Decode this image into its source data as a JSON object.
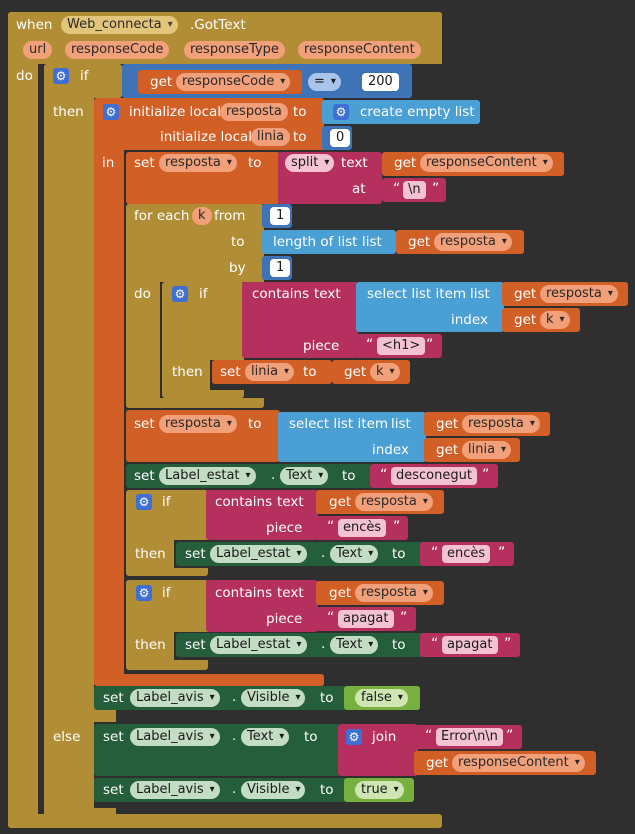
{
  "event": {
    "when": "when",
    "component": "Web_connecta",
    "method": ".GotText",
    "params": [
      "url",
      "responseCode",
      "responseType",
      "responseContent"
    ],
    "do": "do"
  },
  "if1": {
    "if": "if",
    "then": "then",
    "else": "else",
    "get": "get",
    "var": "responseCode",
    "op": "=",
    "value": "200"
  },
  "locals": {
    "init1": "initialize local",
    "var1": "resposta",
    "to": "to",
    "create_list": "create empty list",
    "init2": "initialize local",
    "var2": "linia",
    "value2": "0",
    "in": "in"
  },
  "split_set": {
    "set": "set",
    "var": "resposta",
    "to": "to",
    "split": "split",
    "text": "text",
    "get": "get",
    "src": "responseContent",
    "at": "at",
    "sep": "\\n"
  },
  "foreach": {
    "for_each": "for each",
    "var": "k",
    "from": "from",
    "from_val": "1",
    "to": "to",
    "length": "length of list",
    "list": "list",
    "get": "get",
    "list_var": "resposta",
    "by": "by",
    "by_val": "1",
    "do": "do"
  },
  "inner_if": {
    "if": "if",
    "contains": "contains",
    "text": "text",
    "select": "select list item",
    "list": "list",
    "get": "get",
    "list_var": "resposta",
    "index": "index",
    "index_var": "k",
    "piece": "piece",
    "piece_val": "<h1>",
    "then": "then",
    "set": "set",
    "set_var": "linia",
    "to": "to",
    "get_var": "k"
  },
  "set_resposta2": {
    "set": "set",
    "var": "resposta",
    "to": "to",
    "select": "select list item",
    "list": "list",
    "get": "get",
    "list_var": "resposta",
    "index": "index",
    "index_var": "linia"
  },
  "set_estat1": {
    "set": "set",
    "component": "Label_estat",
    "prop": "Text",
    "to": "to",
    "value": "desconegut"
  },
  "if_encesa": {
    "if": "if",
    "contains": "contains",
    "text": "text",
    "get": "get",
    "var": "resposta",
    "piece": "piece",
    "piece_val": "encès",
    "then": "then",
    "set": "set",
    "component": "Label_estat",
    "prop": "Text",
    "to": "to",
    "value": "encès"
  },
  "if_apagat": {
    "if": "if",
    "contains": "contains",
    "text": "text",
    "get": "get",
    "var": "resposta",
    "piece": "piece",
    "piece_val": "apagat",
    "then": "then",
    "set": "set",
    "component": "Label_estat",
    "prop": "Text",
    "to": "to",
    "value": "apagat"
  },
  "set_avis_visible_false": {
    "set": "set",
    "component": "Label_avis",
    "prop": "Visible",
    "to": "to",
    "value": "false"
  },
  "else_block": {
    "set": "set",
    "component": "Label_avis",
    "prop": "Text",
    "to": "to",
    "join": "join",
    "error": "Error\\n\\n",
    "get": "get",
    "src": "responseContent",
    "set2": "set",
    "component2": "Label_avis",
    "prop2": "Visible",
    "value2": "true"
  },
  "icons": {
    "mutator": "gear-icon",
    "dropdown": "chevron-down-icon"
  },
  "colors": {
    "event": "#b18e35",
    "local": "#d25f26",
    "list": "#4a9fd5",
    "text": "#b5305f",
    "math": "#3e73b8",
    "component": "#245e3a",
    "logic": "#77b03e",
    "background": "#2f2f2f"
  }
}
